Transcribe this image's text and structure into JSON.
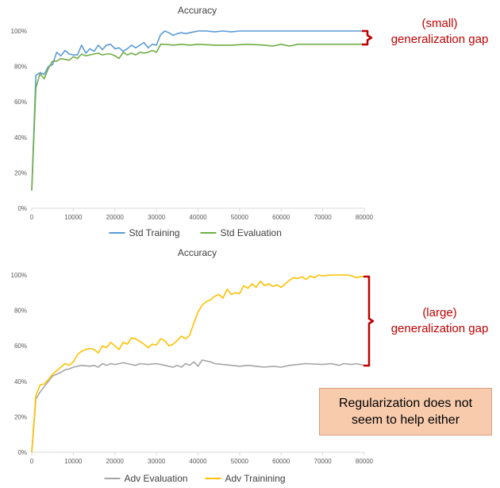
{
  "chart_data": [
    {
      "type": "line",
      "title": "Accuracy",
      "xlabel": "",
      "ylabel": "",
      "xlim": [
        0,
        80000
      ],
      "ylim": [
        0,
        1
      ],
      "x_ticks": [
        "0",
        "10000",
        "20000",
        "30000",
        "40000",
        "50000",
        "60000",
        "70000",
        "80000"
      ],
      "y_ticks": [
        "0%",
        "20%",
        "40%",
        "60%",
        "80%",
        "100%"
      ],
      "grid": false,
      "legend": "bottom",
      "series": [
        {
          "name": "Std Training",
          "color": "#5b9bd5",
          "points": [
            [
              0,
              0.1
            ],
            [
              1000,
              0.75
            ],
            [
              2000,
              0.765
            ],
            [
              3000,
              0.755
            ],
            [
              4000,
              0.8
            ],
            [
              5000,
              0.81
            ],
            [
              6000,
              0.88
            ],
            [
              7000,
              0.86
            ],
            [
              8000,
              0.89
            ],
            [
              9000,
              0.87
            ],
            [
              10000,
              0.865
            ],
            [
              11000,
              0.865
            ],
            [
              12000,
              0.92
            ],
            [
              13000,
              0.875
            ],
            [
              14000,
              0.9
            ],
            [
              15000,
              0.885
            ],
            [
              16000,
              0.92
            ],
            [
              17000,
              0.895
            ],
            [
              18000,
              0.92
            ],
            [
              19000,
              0.925
            ],
            [
              20000,
              0.9
            ],
            [
              21000,
              0.905
            ],
            [
              22000,
              0.885
            ],
            [
              23000,
              0.9
            ],
            [
              24000,
              0.92
            ],
            [
              25000,
              0.905
            ],
            [
              26000,
              0.92
            ],
            [
              27000,
              0.935
            ],
            [
              28000,
              0.905
            ],
            [
              29000,
              0.925
            ],
            [
              30000,
              0.92
            ],
            [
              31000,
              0.98
            ],
            [
              32000,
              1.0
            ],
            [
              33000,
              0.99
            ],
            [
              34000,
              0.975
            ],
            [
              35000,
              0.985
            ],
            [
              36000,
              0.99
            ],
            [
              37000,
              0.985
            ],
            [
              38000,
              0.99
            ],
            [
              40000,
              1.0
            ],
            [
              42000,
              1.0
            ],
            [
              44000,
              0.995
            ],
            [
              46000,
              1.0
            ],
            [
              48000,
              0.995
            ],
            [
              50000,
              1.0
            ],
            [
              52000,
              1.0
            ],
            [
              55000,
              1.0
            ],
            [
              60000,
              1.0
            ],
            [
              65000,
              1.0
            ],
            [
              70000,
              1.0
            ],
            [
              75000,
              1.0
            ],
            [
              80000,
              1.0
            ]
          ]
        },
        {
          "name": "Std Evaluation",
          "color": "#70ad47",
          "points": [
            [
              0,
              0.1
            ],
            [
              1000,
              0.68
            ],
            [
              2000,
              0.76
            ],
            [
              3000,
              0.73
            ],
            [
              4000,
              0.79
            ],
            [
              5000,
              0.83
            ],
            [
              6000,
              0.83
            ],
            [
              7000,
              0.845
            ],
            [
              8000,
              0.84
            ],
            [
              9000,
              0.835
            ],
            [
              10000,
              0.855
            ],
            [
              11000,
              0.845
            ],
            [
              12000,
              0.87
            ],
            [
              13000,
              0.86
            ],
            [
              14000,
              0.865
            ],
            [
              15000,
              0.87
            ],
            [
              16000,
              0.875
            ],
            [
              17000,
              0.865
            ],
            [
              18000,
              0.87
            ],
            [
              19000,
              0.87
            ],
            [
              20000,
              0.86
            ],
            [
              21000,
              0.845
            ],
            [
              22000,
              0.88
            ],
            [
              23000,
              0.865
            ],
            [
              24000,
              0.875
            ],
            [
              25000,
              0.865
            ],
            [
              26000,
              0.88
            ],
            [
              27000,
              0.875
            ],
            [
              28000,
              0.88
            ],
            [
              29000,
              0.89
            ],
            [
              30000,
              0.88
            ],
            [
              31000,
              0.925
            ],
            [
              32000,
              0.925
            ],
            [
              34000,
              0.92
            ],
            [
              36000,
              0.925
            ],
            [
              38000,
              0.92
            ],
            [
              40000,
              0.925
            ],
            [
              44000,
              0.92
            ],
            [
              48000,
              0.92
            ],
            [
              52000,
              0.925
            ],
            [
              56000,
              0.92
            ],
            [
              58000,
              0.915
            ],
            [
              60000,
              0.925
            ],
            [
              62000,
              0.915
            ],
            [
              64000,
              0.925
            ],
            [
              68000,
              0.925
            ],
            [
              72000,
              0.925
            ],
            [
              76000,
              0.925
            ],
            [
              80000,
              0.925
            ]
          ]
        }
      ]
    },
    {
      "type": "line",
      "title": "Accuracy",
      "xlabel": "",
      "ylabel": "",
      "xlim": [
        0,
        80000
      ],
      "ylim": [
        0,
        1
      ],
      "x_ticks": [
        "0",
        "10000",
        "20000",
        "30000",
        "40000",
        "50000",
        "60000",
        "70000",
        "80000"
      ],
      "y_ticks": [
        "0%",
        "20%",
        "40%",
        "60%",
        "80%",
        "100%"
      ],
      "grid": false,
      "legend": "bottom",
      "series": [
        {
          "name": "Adv Evaluation",
          "color": "#a5a5a5",
          "points": [
            [
              0,
              0.0
            ],
            [
              1000,
              0.3
            ],
            [
              2000,
              0.34
            ],
            [
              3000,
              0.37
            ],
            [
              4000,
              0.4
            ],
            [
              5000,
              0.43
            ],
            [
              6000,
              0.44
            ],
            [
              7000,
              0.45
            ],
            [
              8000,
              0.465
            ],
            [
              9000,
              0.47
            ],
            [
              10000,
              0.48
            ],
            [
              11000,
              0.485
            ],
            [
              12000,
              0.49
            ],
            [
              14000,
              0.485
            ],
            [
              15000,
              0.49
            ],
            [
              16000,
              0.48
            ],
            [
              17000,
              0.5
            ],
            [
              18000,
              0.49
            ],
            [
              19000,
              0.5
            ],
            [
              20000,
              0.495
            ],
            [
              21000,
              0.5
            ],
            [
              22000,
              0.505
            ],
            [
              24000,
              0.495
            ],
            [
              25000,
              0.49
            ],
            [
              26000,
              0.5
            ],
            [
              28000,
              0.495
            ],
            [
              30000,
              0.5
            ],
            [
              32000,
              0.49
            ],
            [
              34000,
              0.48
            ],
            [
              35000,
              0.49
            ],
            [
              36000,
              0.48
            ],
            [
              37000,
              0.5
            ],
            [
              38000,
              0.49
            ],
            [
              39000,
              0.51
            ],
            [
              40000,
              0.485
            ],
            [
              41000,
              0.52
            ],
            [
              42000,
              0.515
            ],
            [
              43000,
              0.51
            ],
            [
              44000,
              0.5
            ],
            [
              46000,
              0.495
            ],
            [
              48000,
              0.49
            ],
            [
              50000,
              0.485
            ],
            [
              52000,
              0.49
            ],
            [
              54000,
              0.485
            ],
            [
              56000,
              0.48
            ],
            [
              58000,
              0.485
            ],
            [
              60000,
              0.48
            ],
            [
              62000,
              0.49
            ],
            [
              64000,
              0.495
            ],
            [
              66000,
              0.5
            ],
            [
              70000,
              0.495
            ],
            [
              72000,
              0.5
            ],
            [
              74000,
              0.49
            ],
            [
              75000,
              0.5
            ],
            [
              77000,
              0.495
            ],
            [
              78000,
              0.5
            ],
            [
              80000,
              0.49
            ]
          ]
        },
        {
          "name": "Adv Trainining",
          "color": "#ffc000",
          "points": [
            [
              0,
              0.0
            ],
            [
              1000,
              0.32
            ],
            [
              2000,
              0.38
            ],
            [
              3000,
              0.385
            ],
            [
              4000,
              0.41
            ],
            [
              5000,
              0.44
            ],
            [
              6000,
              0.46
            ],
            [
              7000,
              0.48
            ],
            [
              8000,
              0.5
            ],
            [
              9000,
              0.49
            ],
            [
              10000,
              0.51
            ],
            [
              11000,
              0.55
            ],
            [
              12000,
              0.57
            ],
            [
              13000,
              0.58
            ],
            [
              14000,
              0.585
            ],
            [
              15000,
              0.58
            ],
            [
              16000,
              0.56
            ],
            [
              17000,
              0.6
            ],
            [
              18000,
              0.59
            ],
            [
              19000,
              0.62
            ],
            [
              20000,
              0.6
            ],
            [
              21000,
              0.58
            ],
            [
              22000,
              0.62
            ],
            [
              23000,
              0.61
            ],
            [
              24000,
              0.645
            ],
            [
              25000,
              0.64
            ],
            [
              26000,
              0.625
            ],
            [
              27000,
              0.61
            ],
            [
              28000,
              0.59
            ],
            [
              29000,
              0.61
            ],
            [
              30000,
              0.605
            ],
            [
              31000,
              0.64
            ],
            [
              32000,
              0.63
            ],
            [
              33000,
              0.6
            ],
            [
              34000,
              0.61
            ],
            [
              35000,
              0.63
            ],
            [
              36000,
              0.655
            ],
            [
              37000,
              0.64
            ],
            [
              38000,
              0.66
            ],
            [
              39000,
              0.73
            ],
            [
              40000,
              0.79
            ],
            [
              41000,
              0.83
            ],
            [
              42000,
              0.85
            ],
            [
              43000,
              0.86
            ],
            [
              44000,
              0.88
            ],
            [
              45000,
              0.89
            ],
            [
              46000,
              0.87
            ],
            [
              47000,
              0.92
            ],
            [
              48000,
              0.89
            ],
            [
              49000,
              0.9
            ],
            [
              50000,
              0.895
            ],
            [
              51000,
              0.94
            ],
            [
              52000,
              0.925
            ],
            [
              53000,
              0.95
            ],
            [
              54000,
              0.93
            ],
            [
              55000,
              0.965
            ],
            [
              56000,
              0.94
            ],
            [
              57000,
              0.95
            ],
            [
              58000,
              0.935
            ],
            [
              59000,
              0.945
            ],
            [
              60000,
              0.93
            ],
            [
              61000,
              0.95
            ],
            [
              62000,
              0.97
            ],
            [
              63000,
              0.985
            ],
            [
              64000,
              0.98
            ],
            [
              65000,
              0.99
            ],
            [
              66000,
              0.975
            ],
            [
              67000,
              0.995
            ],
            [
              68000,
              0.985
            ],
            [
              69000,
              1.0
            ],
            [
              70000,
              0.995
            ],
            [
              72000,
              1.0
            ],
            [
              74000,
              1.0
            ],
            [
              76000,
              1.0
            ],
            [
              77000,
              0.995
            ],
            [
              78000,
              0.985
            ],
            [
              79000,
              0.99
            ],
            [
              80000,
              0.99
            ]
          ]
        }
      ]
    }
  ],
  "annotations": {
    "small_gap": [
      "(small)",
      "generalization gap"
    ],
    "large_gap": [
      "(large)",
      "generalization gap"
    ],
    "callout": [
      "Regularization does not",
      "seem to help either"
    ],
    "bracket_color": "#c00000",
    "callout_bg": "#f8cbad"
  }
}
